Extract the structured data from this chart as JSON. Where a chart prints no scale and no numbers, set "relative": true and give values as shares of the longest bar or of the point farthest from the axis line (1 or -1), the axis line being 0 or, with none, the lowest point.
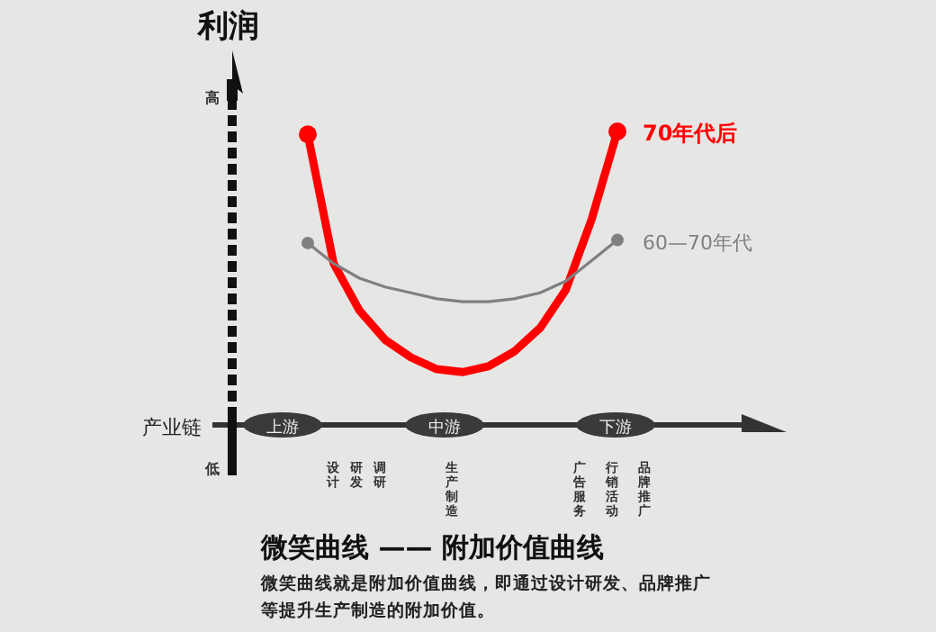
{
  "chart_data": {
    "type": "line",
    "relative": true,
    "title": "微笑曲线 —— 附加价值曲线",
    "subtitle": "微笑曲线就是附加价值曲线，即通过设计研发、品牌推广等提升生产制造的附加价值。",
    "xlabel": "产业链",
    "ylabel": "利润",
    "categories": [
      null,
      null,
      null,
      null,
      null,
      null,
      null,
      null,
      null,
      null,
      null,
      null,
      null
    ],
    "series": [
      {
        "name": "70年代后",
        "color": "#ff0000",
        "values": [
          0.99,
          0.55,
          0.39,
          0.29,
          0.23,
          0.19,
          0.18,
          0.2,
          0.25,
          0.33,
          0.46,
          0.7,
          1.0
        ]
      },
      {
        "name": "60—70年代",
        "color": "#808080",
        "values": [
          0.62,
          0.55,
          0.5,
          0.47,
          0.45,
          0.43,
          0.42,
          0.42,
          0.43,
          0.45,
          0.49,
          0.56,
          0.63
        ]
      }
    ],
    "annotations": [
      "上游",
      "中游",
      "下游",
      "高",
      "低",
      "设计",
      "研发",
      "调研",
      "生产制造",
      "广告服务",
      "行销活动",
      "品牌推广"
    ]
  }
}
